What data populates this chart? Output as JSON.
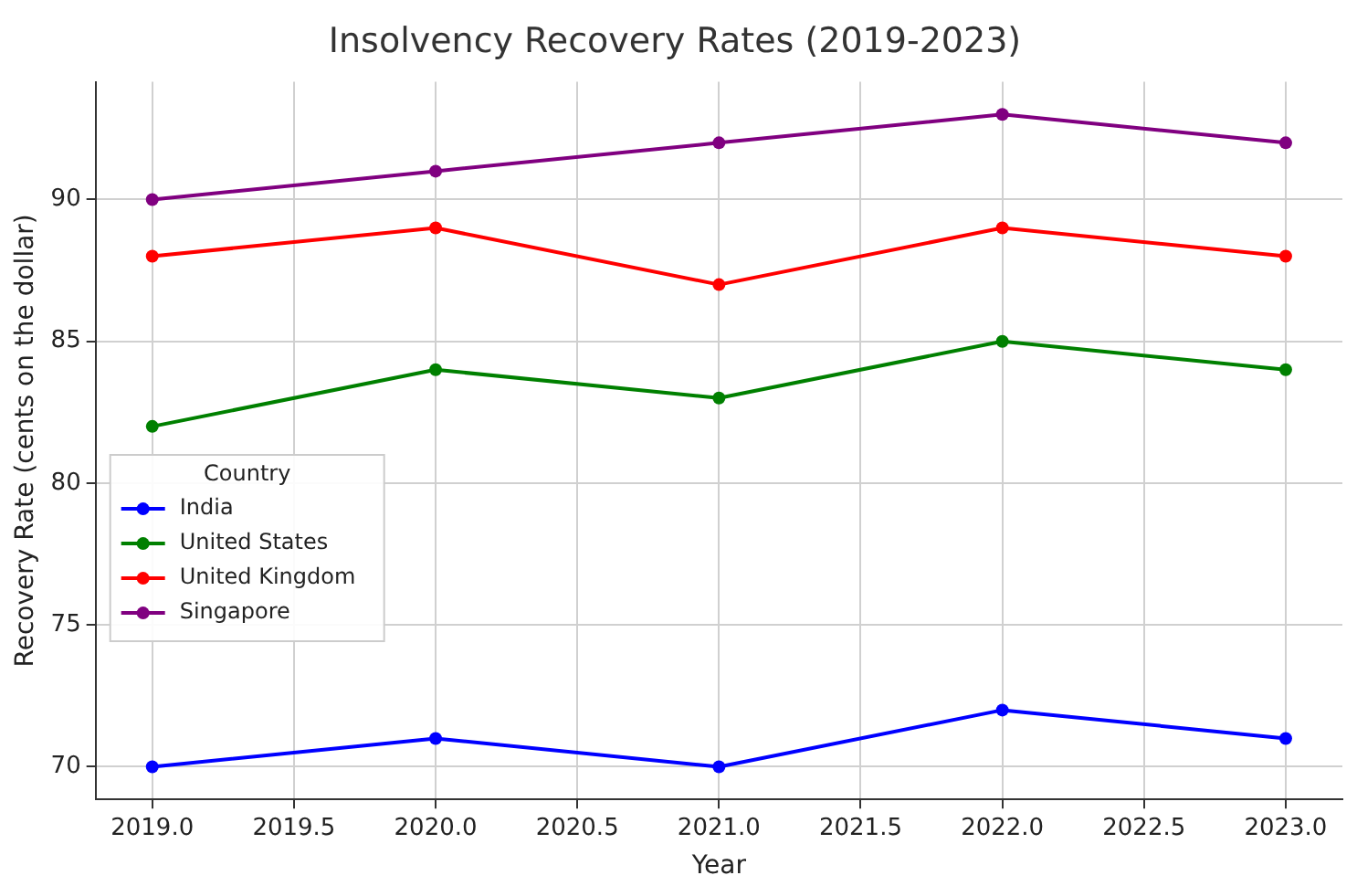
{
  "chart_data": {
    "type": "line",
    "title": "Insolvency Recovery Rates (2019-2023)",
    "xlabel": "Year",
    "ylabel": "Recovery Rate (cents on the dollar)",
    "legend_title": "Country",
    "x": [
      2019,
      2020,
      2021,
      2022,
      2023
    ],
    "series": [
      {
        "name": "India",
        "color": "#0000ff",
        "values": [
          70,
          71,
          70,
          72,
          71
        ]
      },
      {
        "name": "United States",
        "color": "#008000",
        "values": [
          82,
          84,
          83,
          85,
          84
        ]
      },
      {
        "name": "United Kingdom",
        "color": "#ff0000",
        "values": [
          88,
          89,
          87,
          89,
          88
        ]
      },
      {
        "name": "Singapore",
        "color": "#800080",
        "values": [
          90,
          91,
          92,
          93,
          92
        ]
      }
    ],
    "xlim": [
      2018.8,
      2023.2
    ],
    "xticks": [
      {
        "value": 2019,
        "label": "2019.0"
      },
      {
        "value": 2019.5,
        "label": "2019.5"
      },
      {
        "value": 2020,
        "label": "2020.0"
      },
      {
        "value": 2020.5,
        "label": "2020.5"
      },
      {
        "value": 2021,
        "label": "2021.0"
      },
      {
        "value": 2021.5,
        "label": "2021.5"
      },
      {
        "value": 2022,
        "label": "2022.0"
      },
      {
        "value": 2022.5,
        "label": "2022.5"
      },
      {
        "value": 2023,
        "label": "2023.0"
      }
    ],
    "ylim": [
      68.85,
      94.15
    ],
    "yticks": [
      70,
      75,
      80,
      85,
      90
    ],
    "grid": true,
    "legend": "center left",
    "marker": "circle",
    "line_style": "solid"
  }
}
